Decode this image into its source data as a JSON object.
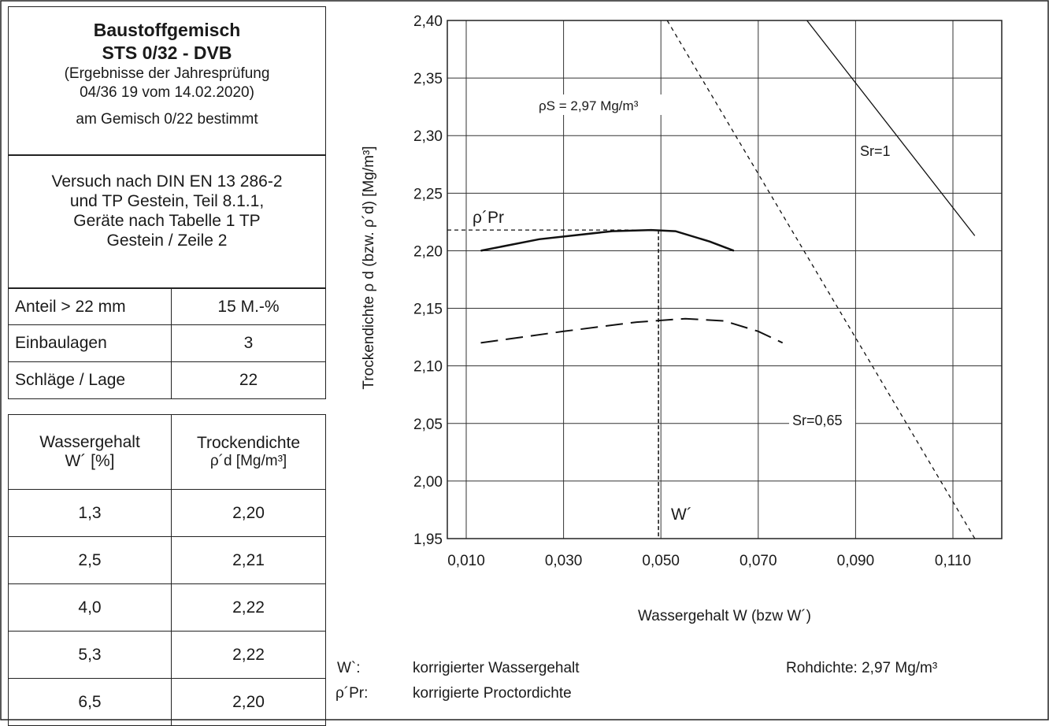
{
  "info": {
    "title1": "Baustoffgemisch",
    "title2": "STS 0/32 - DVB",
    "subtitle1": "(Ergebnisse der Jahresprüfung",
    "subtitle2": "04/36 19 vom 14.02.2020)",
    "subtitle3": "am Gemisch 0/22 bestimmt",
    "method": [
      "Versuch nach DIN EN 13 286-2",
      "und TP Gestein, Teil 8.1.1,",
      "Geräte nach Tabelle 1 TP",
      "Gestein / Zeile 2"
    ]
  },
  "params": [
    {
      "label": "Anteil > 22 mm",
      "value": "15 M.-%"
    },
    {
      "label": "Einbaulagen",
      "value": "3"
    },
    {
      "label": "Schläge / Lage",
      "value": "22"
    }
  ],
  "measure_table": {
    "h1a": "Wassergehalt",
    "h1b": "W´ [%]",
    "h2a": "Trockendichte",
    "h2b": "ρ´d [Mg/m³]",
    "rows": [
      [
        "1,3",
        "2,20"
      ],
      [
        "2,5",
        "2,21"
      ],
      [
        "4,0",
        "2,22"
      ],
      [
        "5,3",
        "2,22"
      ],
      [
        "6,5",
        "2,20"
      ]
    ]
  },
  "legend": {
    "w_sym": "W`:",
    "w_text": "korrigierter Wassergehalt",
    "rho_sym": "ρ´Pr:",
    "rho_text": "korrigierte Proctordichte",
    "rohdichte": "Rohdichte: 2,97 Mg/m³"
  },
  "chart_data": {
    "type": "line",
    "xlabel": "Wassergehalt W (bzw W´)",
    "ylabel": "Trockendichte ρ d (bzw. ρ´d) [Mg/m³]",
    "xlim": [
      0.0,
      0.12
    ],
    "ylim": [
      1.95,
      2.4
    ],
    "xticks": [
      0.01,
      0.03,
      0.05,
      0.07,
      0.09,
      0.11
    ],
    "xtick_labels": [
      "0,010",
      "0,030",
      "0,050",
      "0,070",
      "0,090",
      "0,110"
    ],
    "yticks": [
      1.95,
      2.0,
      2.05,
      2.1,
      2.15,
      2.2,
      2.25,
      2.3,
      2.35,
      2.4
    ],
    "ytick_labels": [
      "1,95",
      "2,00",
      "2,05",
      "2,10",
      "2,15",
      "2,20",
      "2,25",
      "2,30",
      "2,35",
      "2,40"
    ],
    "grid": true,
    "series": [
      {
        "x": [
          0.013,
          0.025,
          0.04,
          0.048,
          0.053,
          0.06,
          0.065
        ],
        "y": [
          2.2,
          2.21,
          2.217,
          2.218,
          2.217,
          2.208,
          2.2
        ]
      },
      {
        "x": [
          0.013,
          0.03,
          0.045,
          0.055,
          0.063,
          0.07,
          0.075
        ],
        "y": [
          2.12,
          2.13,
          2.138,
          2.141,
          2.139,
          2.13,
          2.12
        ]
      },
      {
        "x": [
          0.0513,
          0.1145
        ],
        "y": [
          2.4,
          1.95
        ]
      },
      {
        "x": [
          0.08,
          0.1145
        ],
        "y": [
          2.4,
          2.213
        ]
      }
    ],
    "proctor": {
      "x": 0.0495,
      "y": 2.218
    },
    "annotations": {
      "rho_s": "ρS = 2,97 Mg/m³",
      "sr1": "Sr=1",
      "sr065": "Sr=0,65",
      "rho_pr": "ρ´Pr",
      "w_prime": "W´"
    }
  }
}
